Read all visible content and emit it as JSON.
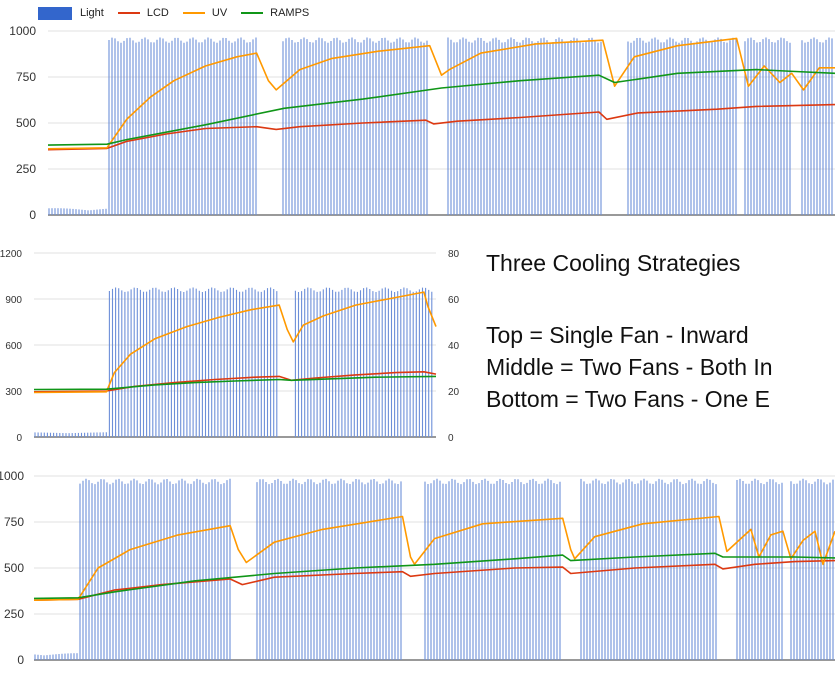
{
  "legend": {
    "items": [
      {
        "label": "Light",
        "color": "#3366cc",
        "kind": "box"
      },
      {
        "label": "LCD",
        "color": "#dc3912",
        "kind": "line"
      },
      {
        "label": "UV",
        "color": "#ff9900",
        "kind": "line"
      },
      {
        "label": "RAMPS",
        "color": "#109618",
        "kind": "line"
      }
    ]
  },
  "annotation": {
    "title": "Three Cooling Strategies",
    "line1": "Top =  Single Fan - Inward",
    "line2": "Middle = Two Fans - Both In",
    "line3": "Bottom = Two Fans - One E"
  },
  "chart_data": [
    {
      "type": "line",
      "title": "Top = Single Fan - Inward",
      "ylim": [
        0,
        1000
      ],
      "yticks": [
        "1000",
        "750",
        "500",
        "250",
        "0"
      ],
      "series": [
        {
          "name": "Light",
          "render": "bars",
          "color": "#3366cc",
          "on_blocks": [
            [
              0.075,
              0.265
            ],
            [
              0.295,
              0.485
            ],
            [
              0.505,
              0.705
            ],
            [
              0.735,
              0.875
            ],
            [
              0.885,
              0.945
            ],
            [
              0.955,
              1.0
            ]
          ],
          "on_value": 965,
          "off_value": 0
        },
        {
          "name": "LCD",
          "color": "#dc3912",
          "points": [
            [
              0,
              355
            ],
            [
              0.075,
              362
            ],
            [
              0.1,
              400
            ],
            [
              0.15,
              440
            ],
            [
              0.2,
              470
            ],
            [
              0.265,
              480
            ],
            [
              0.29,
              465
            ],
            [
              0.32,
              480
            ],
            [
              0.4,
              500
            ],
            [
              0.48,
              515
            ],
            [
              0.49,
              495
            ],
            [
              0.52,
              510
            ],
            [
              0.6,
              530
            ],
            [
              0.7,
              560
            ],
            [
              0.71,
              520
            ],
            [
              0.75,
              555
            ],
            [
              0.85,
              575
            ],
            [
              0.9,
              590
            ],
            [
              1.0,
              600
            ]
          ]
        },
        {
          "name": "UV",
          "color": "#ff9900",
          "points": [
            [
              0,
              360
            ],
            [
              0.075,
              365
            ],
            [
              0.1,
              520
            ],
            [
              0.13,
              640
            ],
            [
              0.16,
              730
            ],
            [
              0.2,
              810
            ],
            [
              0.24,
              860
            ],
            [
              0.265,
              880
            ],
            [
              0.28,
              730
            ],
            [
              0.29,
              680
            ],
            [
              0.32,
              790
            ],
            [
              0.36,
              850
            ],
            [
              0.42,
              890
            ],
            [
              0.485,
              920
            ],
            [
              0.5,
              760
            ],
            [
              0.51,
              790
            ],
            [
              0.55,
              880
            ],
            [
              0.62,
              930
            ],
            [
              0.705,
              950
            ],
            [
              0.72,
              700
            ],
            [
              0.745,
              860
            ],
            [
              0.8,
              920
            ],
            [
              0.875,
              960
            ],
            [
              0.89,
              700
            ],
            [
              0.91,
              810
            ],
            [
              0.93,
              720
            ],
            [
              0.945,
              770
            ],
            [
              0.96,
              680
            ],
            [
              0.98,
              800
            ],
            [
              1.0,
              800
            ]
          ]
        },
        {
          "name": "RAMPS",
          "color": "#109618",
          "points": [
            [
              0,
              380
            ],
            [
              0.075,
              385
            ],
            [
              0.1,
              410
            ],
            [
              0.2,
              490
            ],
            [
              0.3,
              580
            ],
            [
              0.4,
              630
            ],
            [
              0.5,
              690
            ],
            [
              0.6,
              730
            ],
            [
              0.7,
              760
            ],
            [
              0.72,
              720
            ],
            [
              0.8,
              770
            ],
            [
              0.9,
              790
            ],
            [
              0.95,
              780
            ],
            [
              1.0,
              770
            ]
          ]
        }
      ]
    },
    {
      "type": "line",
      "title": "Middle = Two Fans - Both In",
      "ylim": [
        0,
        1200
      ],
      "yticks": [
        "1200",
        "900",
        "600",
        "300",
        "0"
      ],
      "y2ticks": [
        "80",
        "60",
        "40",
        "20",
        "0"
      ],
      "series": [
        {
          "name": "Light",
          "render": "bars",
          "color": "#3366cc",
          "on_blocks": [
            [
              0.18,
              0.61
            ],
            [
              0.645,
              0.99
            ]
          ],
          "on_value": 975,
          "off_value": 0
        },
        {
          "name": "LCD",
          "color": "#dc3912",
          "points": [
            [
              0,
              295
            ],
            [
              0.18,
              300
            ],
            [
              0.25,
              330
            ],
            [
              0.35,
              355
            ],
            [
              0.45,
              375
            ],
            [
              0.55,
              390
            ],
            [
              0.61,
              395
            ],
            [
              0.64,
              370
            ],
            [
              0.7,
              385
            ],
            [
              0.8,
              405
            ],
            [
              0.9,
              420
            ],
            [
              0.97,
              425
            ],
            [
              1.0,
              410
            ]
          ]
        },
        {
          "name": "UV",
          "color": "#ff9900",
          "points": [
            [
              0,
              290
            ],
            [
              0.18,
              295
            ],
            [
              0.2,
              420
            ],
            [
              0.24,
              540
            ],
            [
              0.3,
              640
            ],
            [
              0.38,
              720
            ],
            [
              0.46,
              780
            ],
            [
              0.54,
              830
            ],
            [
              0.61,
              860
            ],
            [
              0.63,
              700
            ],
            [
              0.645,
              620
            ],
            [
              0.67,
              730
            ],
            [
              0.72,
              790
            ],
            [
              0.8,
              860
            ],
            [
              0.9,
              910
            ],
            [
              0.97,
              945
            ],
            [
              0.98,
              850
            ],
            [
              1.0,
              720
            ]
          ]
        },
        {
          "name": "RAMPS",
          "color": "#109618",
          "points": [
            [
              0,
              310
            ],
            [
              0.18,
              312
            ],
            [
              0.3,
              340
            ],
            [
              0.4,
              355
            ],
            [
              0.5,
              365
            ],
            [
              0.61,
              375
            ],
            [
              0.64,
              370
            ],
            [
              0.75,
              380
            ],
            [
              0.85,
              390
            ],
            [
              1.0,
              395
            ]
          ]
        }
      ]
    },
    {
      "type": "line",
      "title": "Bottom = Two Fans - One E",
      "ylim": [
        0,
        1000
      ],
      "yticks": [
        "1000",
        "750",
        "500",
        "250",
        "0"
      ],
      "series": [
        {
          "name": "Light",
          "render": "bars",
          "color": "#3366cc",
          "on_blocks": [
            [
              0.055,
              0.245
            ],
            [
              0.275,
              0.46
            ],
            [
              0.485,
              0.66
            ],
            [
              0.68,
              0.855
            ],
            [
              0.875,
              0.935
            ],
            [
              0.945,
              1.0
            ]
          ],
          "on_value": 985,
          "off_value": 0
        },
        {
          "name": "LCD",
          "color": "#dc3912",
          "points": [
            [
              0,
              325
            ],
            [
              0.055,
              330
            ],
            [
              0.1,
              380
            ],
            [
              0.16,
              410
            ],
            [
              0.245,
              440
            ],
            [
              0.26,
              410
            ],
            [
              0.3,
              450
            ],
            [
              0.4,
              470
            ],
            [
              0.46,
              480
            ],
            [
              0.47,
              455
            ],
            [
              0.5,
              470
            ],
            [
              0.6,
              500
            ],
            [
              0.66,
              505
            ],
            [
              0.67,
              470
            ],
            [
              0.75,
              500
            ],
            [
              0.85,
              520
            ],
            [
              0.86,
              495
            ],
            [
              0.9,
              520
            ],
            [
              0.95,
              535
            ],
            [
              1.0,
              540
            ]
          ]
        },
        {
          "name": "UV",
          "color": "#ff9900",
          "points": [
            [
              0,
              325
            ],
            [
              0.055,
              330
            ],
            [
              0.08,
              500
            ],
            [
              0.12,
              600
            ],
            [
              0.18,
              680
            ],
            [
              0.245,
              730
            ],
            [
              0.255,
              600
            ],
            [
              0.265,
              530
            ],
            [
              0.3,
              640
            ],
            [
              0.36,
              710
            ],
            [
              0.46,
              780
            ],
            [
              0.47,
              560
            ],
            [
              0.475,
              520
            ],
            [
              0.5,
              660
            ],
            [
              0.56,
              740
            ],
            [
              0.66,
              770
            ],
            [
              0.67,
              600
            ],
            [
              0.675,
              550
            ],
            [
              0.7,
              670
            ],
            [
              0.76,
              740
            ],
            [
              0.855,
              780
            ],
            [
              0.865,
              590
            ],
            [
              0.88,
              650
            ],
            [
              0.895,
              710
            ],
            [
              0.905,
              560
            ],
            [
              0.92,
              680
            ],
            [
              0.935,
              700
            ],
            [
              0.945,
              550
            ],
            [
              0.96,
              650
            ],
            [
              0.975,
              700
            ],
            [
              0.985,
              520
            ],
            [
              1.0,
              700
            ]
          ]
        },
        {
          "name": "RAMPS",
          "color": "#109618",
          "points": [
            [
              0,
              335
            ],
            [
              0.055,
              338
            ],
            [
              0.1,
              370
            ],
            [
              0.2,
              430
            ],
            [
              0.3,
              470
            ],
            [
              0.4,
              500
            ],
            [
              0.5,
              520
            ],
            [
              0.6,
              550
            ],
            [
              0.66,
              570
            ],
            [
              0.67,
              540
            ],
            [
              0.75,
              560
            ],
            [
              0.85,
              580
            ],
            [
              0.86,
              560
            ],
            [
              0.95,
              560
            ],
            [
              1.0,
              555
            ]
          ]
        }
      ]
    }
  ]
}
